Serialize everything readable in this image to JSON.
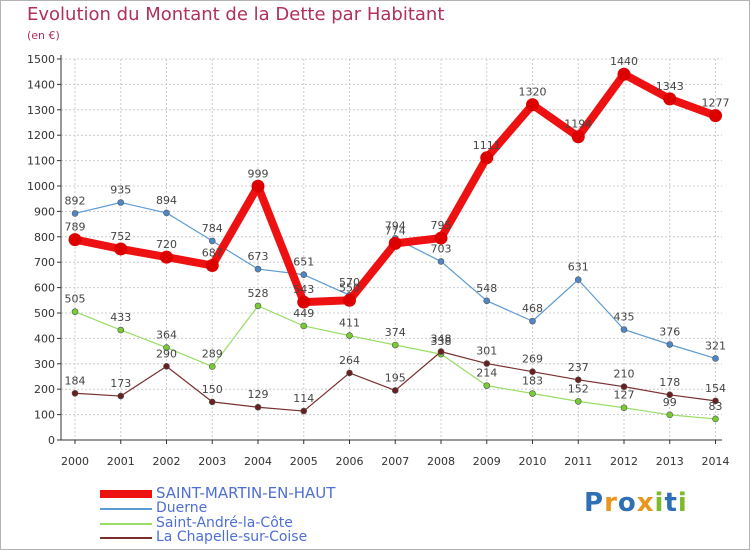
{
  "title": "Evolution du Montant de la Dette par Habitant",
  "subtitle": "(en €)",
  "colors": {
    "title": "#b0305a",
    "grid": "#cccccc",
    "axis": "#333333",
    "tick_label": "#333333",
    "value_label": "#444444"
  },
  "logo": {
    "text": "Proxiti",
    "letter_colors": [
      "#2f6fb4",
      "#e8961e",
      "#2f6fb4",
      "#e8961e",
      "#7dbb2a",
      "#2f6fb4",
      "#7dbb2a"
    ]
  },
  "chart_data": {
    "type": "line",
    "title": "Evolution du Montant de la Dette par Habitant",
    "subtitle": "(en €)",
    "x": [
      "2000",
      "2001",
      "2002",
      "2003",
      "2004",
      "2005",
      "2006",
      "2007",
      "2008",
      "2009",
      "2010",
      "2011",
      "2012",
      "2013",
      "2014"
    ],
    "ylim": [
      0,
      1500
    ],
    "yticks": [
      0,
      100,
      200,
      300,
      400,
      500,
      600,
      700,
      800,
      900,
      1000,
      1100,
      1200,
      1300,
      1400,
      1500
    ],
    "grid": true,
    "legend_position": "bottom-left",
    "series": [
      {
        "name": "SAINT-MARTIN-EN-HAUT",
        "color": "#ee1111",
        "marker": "#dd0000",
        "emphasis": "thick",
        "label_color": "#444444",
        "values": [
          789,
          752,
          720,
          687,
          999,
          543,
          550,
          774,
          795,
          1111,
          1320,
          1194,
          1440,
          1343,
          1277
        ],
        "labels": [
          "789",
          "752",
          "720",
          "687",
          "999",
          "543",
          "550",
          "774",
          "795",
          "1111",
          "1320",
          "1194",
          "1440",
          "1343",
          "1277"
        ]
      },
      {
        "name": "Duerne",
        "color": "#5b9bd5",
        "marker": "#4f86c6",
        "emphasis": "thin",
        "label_color": "#444444",
        "values": [
          892,
          935,
          894,
          784,
          673,
          651,
          570,
          794,
          703,
          548,
          468,
          631,
          435,
          376,
          321
        ],
        "labels": [
          "892",
          "935",
          "894",
          "784",
          "673",
          "651",
          "570",
          "794",
          "703",
          "548",
          "468",
          "631",
          "435",
          "376",
          "321"
        ]
      },
      {
        "name": "Saint-André-la-Côte",
        "color": "#99dd66",
        "marker": "#77cc33",
        "emphasis": "thin",
        "label_color": "#444444",
        "values": [
          505,
          433,
          364,
          289,
          528,
          449,
          411,
          374,
          338,
          214,
          183,
          152,
          127,
          99,
          83
        ],
        "labels": [
          "505",
          "433",
          "364",
          "289",
          "528",
          "449",
          "411",
          "374",
          "338",
          "214",
          "183",
          "152",
          "127",
          "99",
          "83"
        ]
      },
      {
        "name": "La Chapelle-sur-Coise",
        "color": "#7a2f2f",
        "marker": "#6b2020",
        "emphasis": "thin",
        "label_color": "#444444",
        "values": [
          184,
          173,
          290,
          150,
          129,
          114,
          264,
          195,
          348,
          301,
          269,
          237,
          210,
          178,
          154
        ],
        "labels": [
          "184",
          "173",
          "290",
          "150",
          "129",
          "114",
          "264",
          "195",
          "348",
          "301",
          "269",
          "237",
          "210",
          "178",
          "154"
        ]
      }
    ]
  }
}
